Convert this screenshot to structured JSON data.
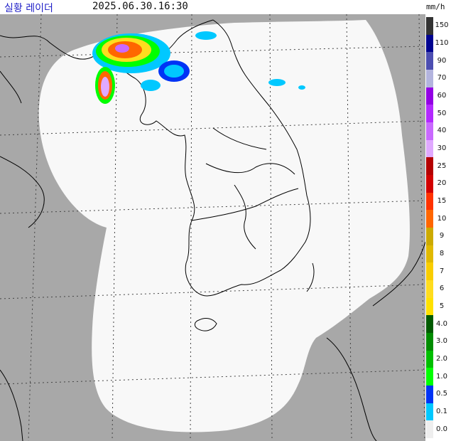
{
  "header": {
    "title": "실황 레이더",
    "timestamp": "2025.06.30.16:30",
    "unit": "mm/h"
  },
  "colors": {
    "sea": "#a8a8a8",
    "radar_coverage": "#f8f8f8",
    "coastline": "#000000",
    "grid": "#444444"
  },
  "legend": [
    {
      "label": "150",
      "color": "#333333"
    },
    {
      "label": "110",
      "color": "#000390"
    },
    {
      "label": "90",
      "color": "#4c4eb1"
    },
    {
      "label": "70",
      "color": "#b3b4de"
    },
    {
      "label": "60",
      "color": "#9300e4"
    },
    {
      "label": "50",
      "color": "#b329ff"
    },
    {
      "label": "40",
      "color": "#c969ff"
    },
    {
      "label": "30",
      "color": "#e0a9ff"
    },
    {
      "label": "25",
      "color": "#b40000"
    },
    {
      "label": "20",
      "color": "#d20000"
    },
    {
      "label": "15",
      "color": "#ff3200"
    },
    {
      "label": "10",
      "color": "#ff6600"
    },
    {
      "label": "9",
      "color": "#ccaa00"
    },
    {
      "label": "8",
      "color": "#e0b900"
    },
    {
      "label": "7",
      "color": "#f9cd00"
    },
    {
      "label": "6",
      "color": "#ffdc1f"
    },
    {
      "label": "5",
      "color": "#ffe100"
    },
    {
      "label": "4.0",
      "color": "#005a00"
    },
    {
      "label": "3.0",
      "color": "#008c00"
    },
    {
      "label": "2.0",
      "color": "#00be00"
    },
    {
      "label": "1.0",
      "color": "#00ff00"
    },
    {
      "label": "0.5",
      "color": "#0033f5"
    },
    {
      "label": "0.1",
      "color": "#00c8ff"
    },
    {
      "label": "0.0",
      "color": "#eeeeee"
    }
  ]
}
